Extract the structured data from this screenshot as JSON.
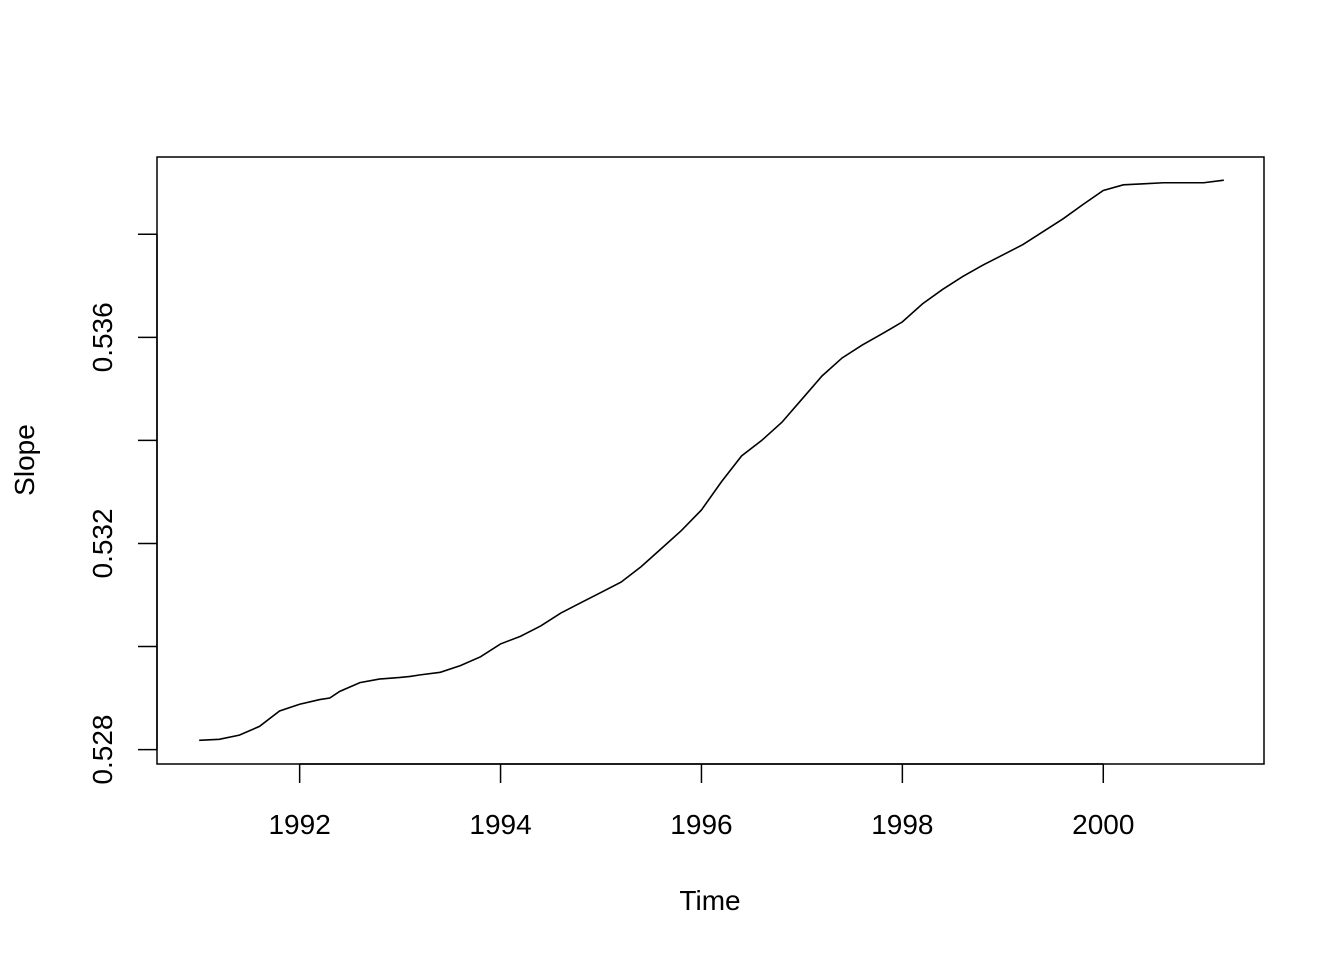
{
  "chart_data": {
    "type": "line",
    "title": "",
    "xlabel": "Time",
    "ylabel": "Slope",
    "xlim": [
      1990.58,
      2001.6
    ],
    "ylim": [
      0.52772,
      0.5395
    ],
    "x_ticks": [
      1992,
      1994,
      1996,
      1998,
      2000
    ],
    "x_tick_labels": [
      "1992",
      "1994",
      "1996",
      "1998",
      "2000"
    ],
    "y_ticks": [
      0.528,
      0.53,
      0.532,
      0.534,
      0.536,
      0.538
    ],
    "y_tick_labels": [
      "0.528",
      "",
      "0.532",
      "",
      "0.536",
      ""
    ],
    "grid": false,
    "line_color": "#000000",
    "series": [
      {
        "x": [
          1991.0,
          1991.2,
          1991.4,
          1991.6,
          1991.8,
          1992.0,
          1992.2,
          1992.3,
          1992.4,
          1992.6,
          1992.8,
          1993.0,
          1993.1,
          1993.2,
          1993.4,
          1993.6,
          1993.8,
          1994.0,
          1994.2,
          1994.4,
          1994.6,
          1994.8,
          1995.0,
          1995.2,
          1995.4,
          1995.6,
          1995.8,
          1996.0,
          1996.2,
          1996.4,
          1996.6,
          1996.8,
          1997.0,
          1997.2,
          1997.4,
          1997.6,
          1997.8,
          1998.0,
          1998.2,
          1998.4,
          1998.6,
          1998.8,
          1999.0,
          1999.2,
          1999.4,
          1999.6,
          1999.8,
          2000.0,
          2000.2,
          2000.4,
          2000.6,
          2000.8,
          2001.0,
          2001.2
        ],
        "values": [
          0.52818,
          0.5282,
          0.52828,
          0.52845,
          0.52875,
          0.52888,
          0.52897,
          0.529,
          0.52913,
          0.5293,
          0.52937,
          0.5294,
          0.52942,
          0.52945,
          0.5295,
          0.52963,
          0.5298,
          0.53005,
          0.5302,
          0.5304,
          0.53065,
          0.53085,
          0.53105,
          0.53125,
          0.53155,
          0.5319,
          0.53225,
          0.53265,
          0.5332,
          0.5337,
          0.534,
          0.53435,
          0.5348,
          0.53525,
          0.5356,
          0.53585,
          0.53607,
          0.5363,
          0.53665,
          0.53693,
          0.53718,
          0.5374,
          0.5376,
          0.5378,
          0.53805,
          0.5383,
          0.53858,
          0.53885,
          0.53896,
          0.53898,
          0.539,
          0.539,
          0.539,
          0.53905
        ]
      }
    ]
  }
}
